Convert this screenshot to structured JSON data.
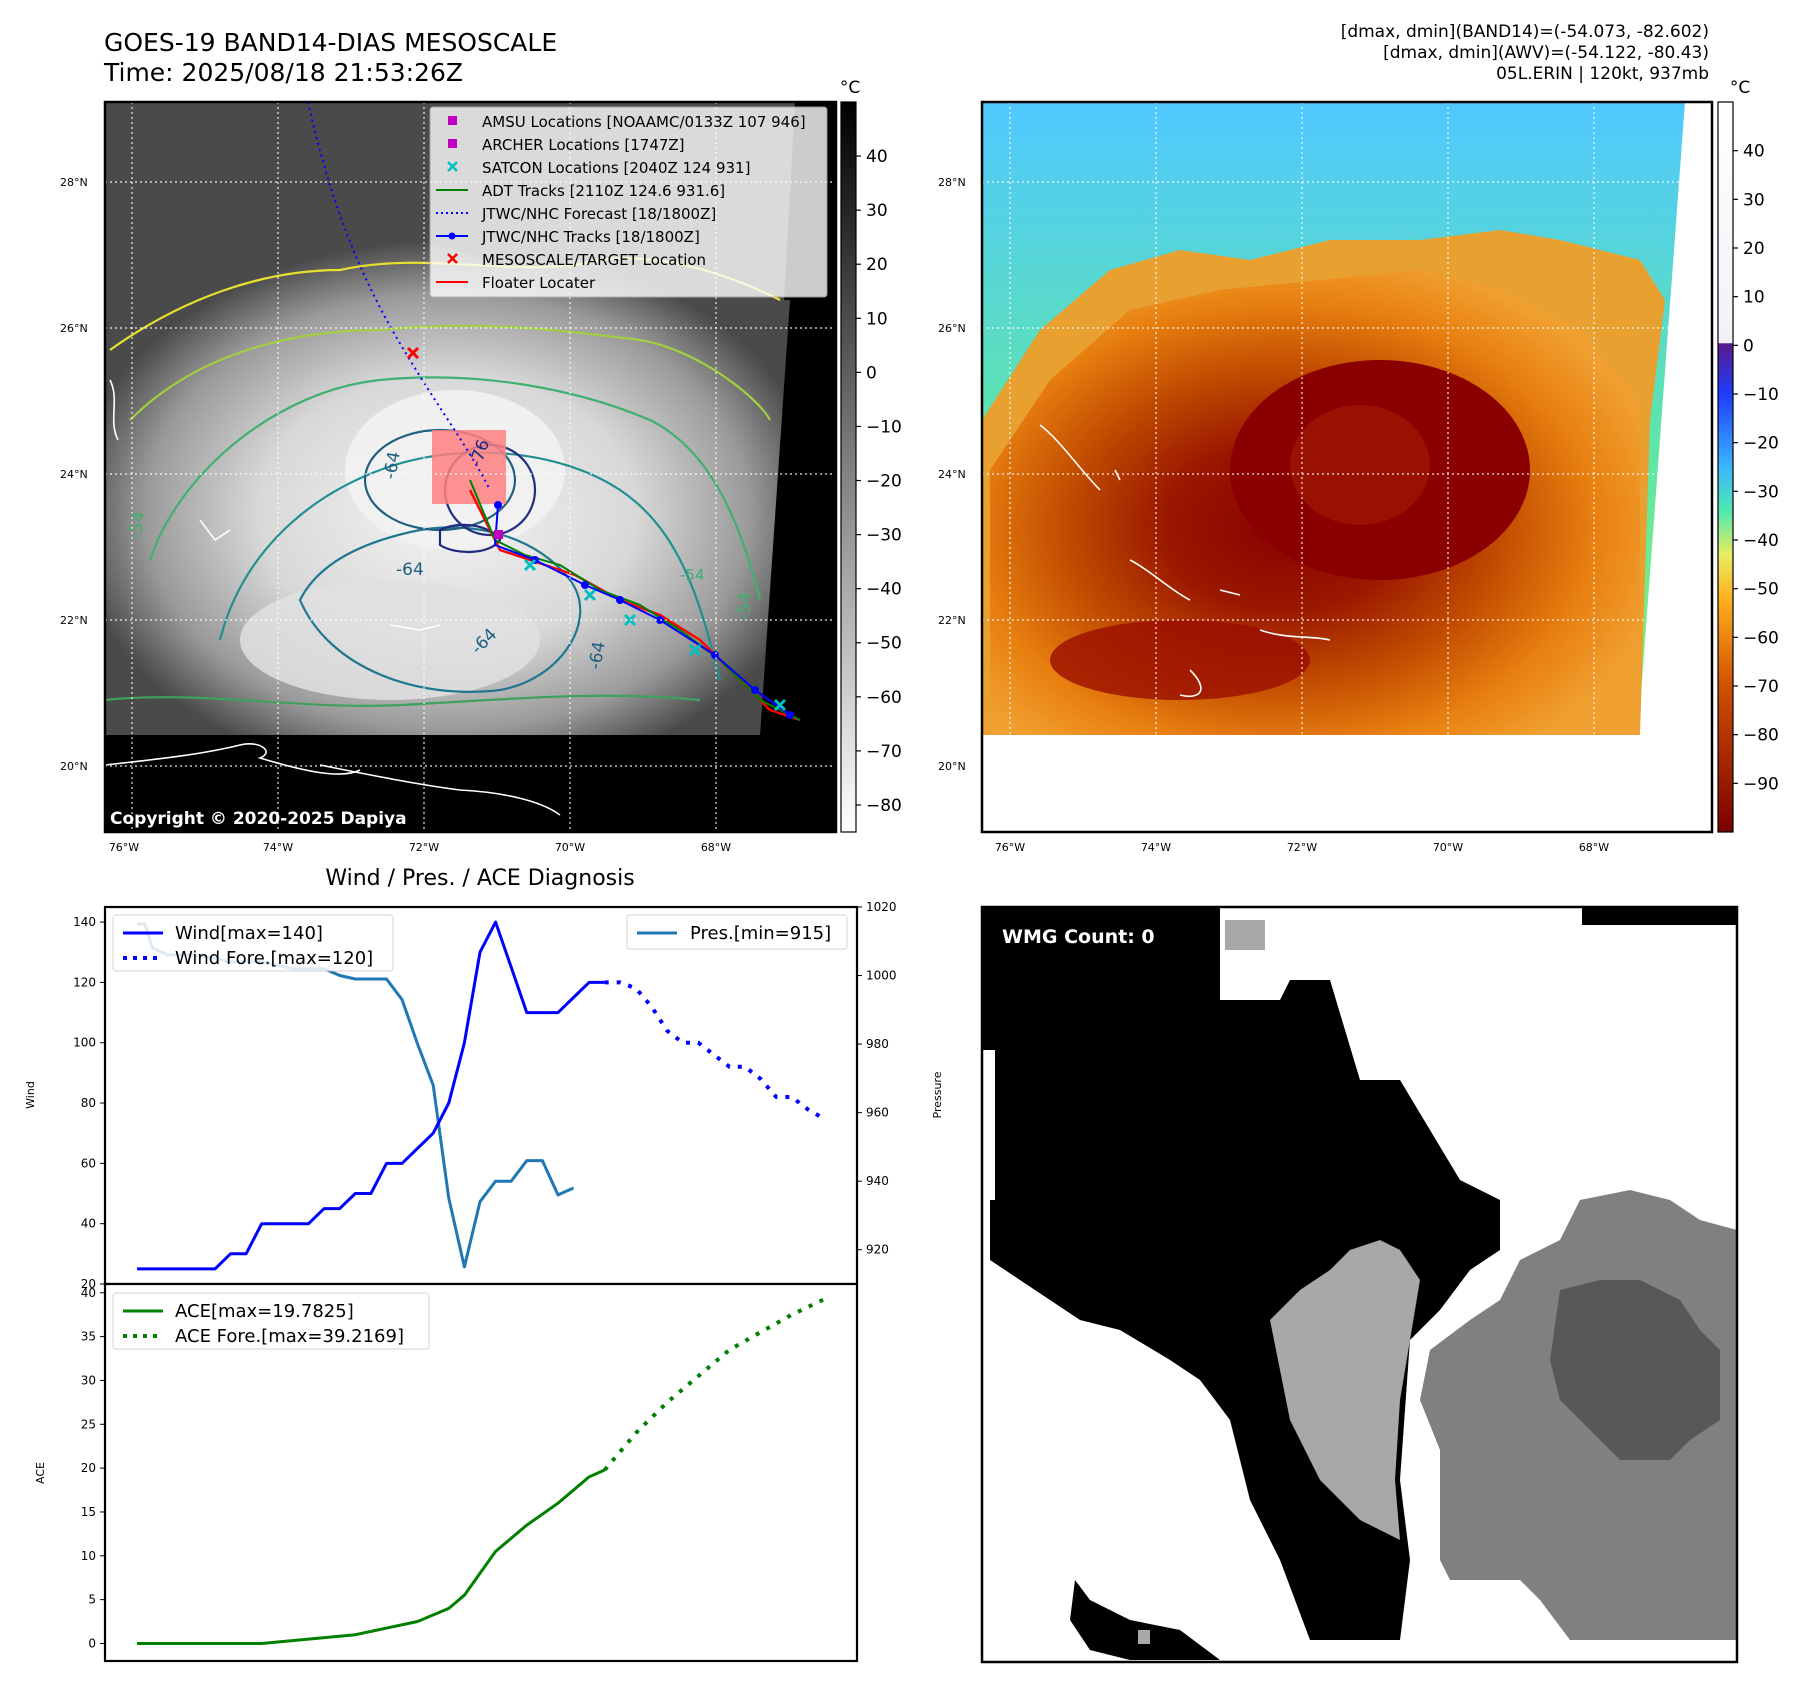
{
  "title_line1": "GOES-19 BAND14-DIAS MESOSCALE",
  "title_line2": "Time: 2025/08/18 21:53:26Z",
  "info_lines": [
    "[dmax, dmin](BAND14)=(-54.073, -82.602)",
    "[dmax, dmin](AWV)=(-54.122, -80.43)",
    "05L.ERIN | 120kt, 937mb"
  ],
  "copyright": "Copyright © 2020-2025 Dapiya",
  "map": {
    "lat_ticks": [
      "28°N",
      "26°N",
      "24°N",
      "22°N",
      "20°N"
    ],
    "lon_ticks": [
      "76°W",
      "74°W",
      "72°W",
      "70°W",
      "68°W"
    ],
    "contour_labels": [
      "-76",
      "-64",
      "-64",
      "-64",
      "-54",
      "-54",
      "-64",
      "-54"
    ],
    "legend": [
      "AMSU Locations [NOAAMC/0133Z 107 946]",
      "ARCHER Locations [1747Z]",
      "SATCON Locations [2040Z 124 931]",
      "ADT Tracks [2110Z 124.6 931.6]",
      "JTWC/NHC Forecast [18/1800Z]",
      "JTWC/NHC Tracks [18/1800Z]",
      "MESOSCALE/TARGET Location",
      "Floater Locater"
    ],
    "colors": {
      "amsu": "#c000c0",
      "archer": "#c000c0",
      "satcon": "#00c0c0",
      "adt": "#008000",
      "forecast": "#0000ff",
      "tracks": "#0000ff",
      "target": "#ff0000",
      "floater": "#ff0000"
    }
  },
  "colorbar_left": {
    "unit": "°C",
    "ticks": [
      "40",
      "30",
      "20",
      "10",
      "0",
      "−10",
      "−20",
      "−30",
      "−40",
      "−50",
      "−60",
      "−70",
      "−80"
    ]
  },
  "colorbar_right": {
    "unit": "°C",
    "ticks": [
      "40",
      "30",
      "20",
      "10",
      "0",
      "−10",
      "−20",
      "−30",
      "−40",
      "−50",
      "−60",
      "−70",
      "−80",
      "−90"
    ]
  },
  "wmg": {
    "label": "WMG Count: 0"
  },
  "chart_data": [
    {
      "type": "line",
      "title": "Wind / Pres. / ACE Diagnosis",
      "ylabel": "Wind",
      "ylabel_right": "Pressure",
      "ylim": [
        20,
        145
      ],
      "ylim_right": [
        910,
        1020
      ],
      "yticks": [
        20,
        40,
        60,
        80,
        100,
        120,
        140
      ],
      "yticks_right": [
        920,
        940,
        960,
        980,
        1000,
        1020
      ],
      "legend_placement": "upper-left / upper-right",
      "series": [
        {
          "name": "Wind[max=140]",
          "color": "#0000ff",
          "style": "solid",
          "x": [
            0,
            5,
            6,
            7,
            8,
            9,
            10,
            11,
            12,
            13,
            14,
            15,
            16,
            17,
            18,
            19,
            20,
            21,
            22,
            23,
            24,
            25,
            26,
            27,
            28,
            29,
            30
          ],
          "y": [
            25,
            25,
            30,
            30,
            40,
            40,
            40,
            40,
            45,
            45,
            50,
            50,
            60,
            60,
            65,
            70,
            80,
            100,
            130,
            140,
            125,
            110,
            110,
            110,
            115,
            120,
            120
          ]
        },
        {
          "name": "Wind Fore.[max=120]",
          "color": "#0000ff",
          "style": "dotted",
          "x": [
            30,
            31,
            32,
            33,
            34,
            35,
            36,
            37,
            38,
            39,
            40,
            41,
            42,
            43,
            44
          ],
          "y": [
            120,
            120,
            118,
            112,
            104,
            100,
            100,
            96,
            92,
            92,
            88,
            82,
            82,
            78,
            75
          ]
        },
        {
          "name": "Pres.[min=915]",
          "color": "#1f77b4",
          "style": "solid",
          "axis": "right",
          "x": [
            0,
            0.5,
            1,
            2,
            3,
            4,
            5,
            6,
            8,
            10,
            12,
            13,
            14,
            15,
            16,
            17,
            18,
            19,
            20,
            21,
            22,
            23,
            24,
            25,
            26,
            27,
            28
          ],
          "y": [
            1015,
            1015,
            1008,
            1006,
            1006,
            1006,
            1005,
            1004,
            1004,
            1002,
            1002,
            1000,
            999,
            999,
            999,
            993,
            980,
            968,
            935,
            915,
            934,
            940,
            940,
            946,
            946,
            936,
            938
          ]
        }
      ]
    },
    {
      "type": "line",
      "ylabel": "ACE",
      "ylim": [
        -2,
        41
      ],
      "yticks": [
        0,
        5,
        10,
        15,
        20,
        25,
        30,
        35,
        40
      ],
      "legend_placement": "upper-left",
      "series": [
        {
          "name": "ACE[max=19.7825]",
          "color": "#008000",
          "style": "solid",
          "x": [
            0,
            3,
            8,
            14,
            18,
            20,
            21,
            22,
            23,
            25,
            27,
            29,
            30
          ],
          "y": [
            0,
            0,
            0,
            1,
            2.5,
            4,
            5.5,
            8,
            10.5,
            13.5,
            16,
            19,
            19.78
          ]
        },
        {
          "name": "ACE Fore.[max=39.2169]",
          "color": "#008000",
          "style": "dotted",
          "x": [
            30,
            32,
            34,
            36,
            38,
            40,
            42,
            44
          ],
          "y": [
            19.78,
            24,
            27.5,
            30.5,
            33.5,
            35.5,
            37.5,
            39.2
          ]
        }
      ]
    }
  ]
}
